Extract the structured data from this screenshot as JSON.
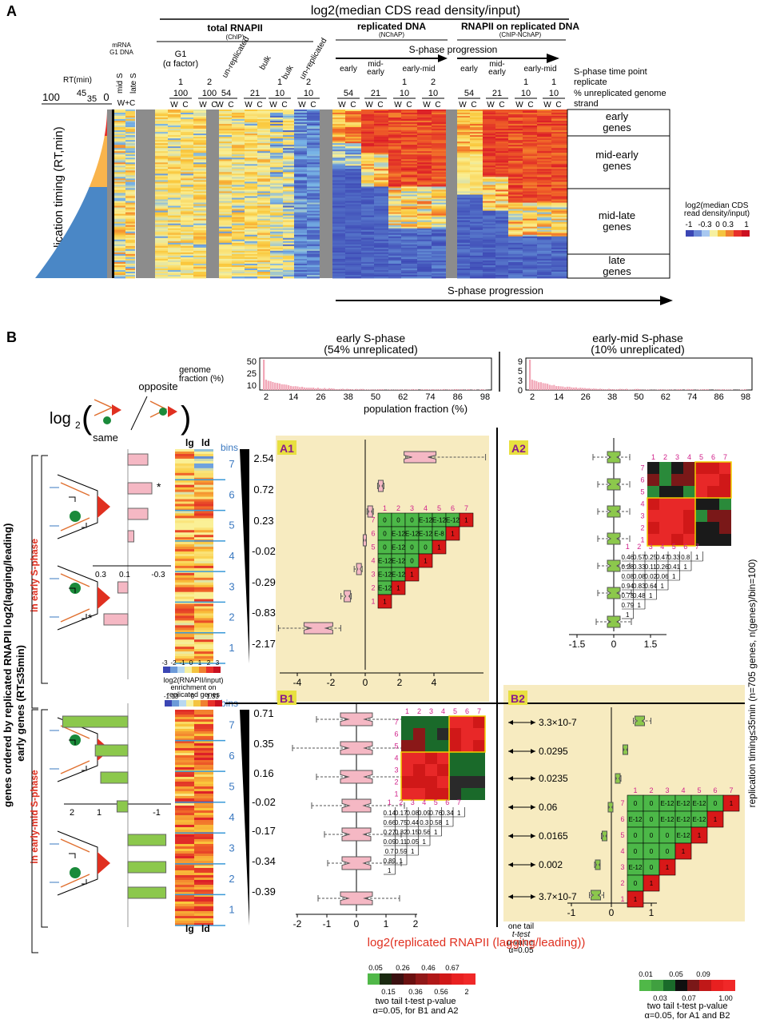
{
  "panel_a": {
    "letter": "A",
    "main_title": "log2(median CDS read density/input)",
    "group_total": "total RNAPII",
    "group_total_sub": "(ChIP)",
    "group_repl": "replicated DNA",
    "group_repl_sub": "(NChAP)",
    "group_rnapii_repl": "RNAPII on replicated DNA",
    "group_rnapii_repl_sub": "(ChIP-NChAP)",
    "s_phase_progression": "S-phase progression",
    "mrna_label": "mRNA",
    "g1dna_label": "G1 DNA",
    "mid_s": "mid S",
    "late_s": "late S",
    "wc_combined": "W+C",
    "rt_axis_label": "RT(min)",
    "rt_ticks": [
      "100",
      "45",
      "35",
      "0"
    ],
    "y_axis_label": "replication timing (RT,min)",
    "g1_label": "G1",
    "alpha_factor": "(α factor)",
    "unreplicated": "un-replicated",
    "bulk": "bulk",
    "tp_early": "early",
    "tp_mid": "mid-",
    "tp_mid2": "early",
    "tp_earlymid": "early-mid",
    "tp_earlymid_rnap": "early-mid",
    "row_tp_label": "S-phase time point",
    "row_rep_label": "replicate",
    "row_unrep_label": "% unreplicated genome",
    "row_strand_label": "strand",
    "total_replicates": [
      "1",
      "2",
      "",
      "",
      "1",
      "2"
    ],
    "total_pct": [
      "100",
      "100",
      "54",
      "21",
      "10",
      "10"
    ],
    "repl_replicates": [
      "",
      "",
      "1",
      "2"
    ],
    "repl_pct": [
      "54",
      "21",
      "10",
      "10"
    ],
    "rnap_replicates": [
      "",
      "",
      "1",
      "1"
    ],
    "rnap_pct": [
      "54",
      "21",
      "10",
      "10"
    ],
    "strand_w": "W",
    "strand_c": "C",
    "gene_classes": [
      "early genes",
      "mid-early genes",
      "mid-late genes",
      "late genes"
    ],
    "legend_title": "log2(median CDS read density/input)",
    "legend_ticks": [
      "-1",
      "-0.3",
      "0",
      "0.3",
      "1"
    ],
    "bottom_arrow_label": "S-phase progression"
  },
  "panel_b": {
    "letter": "B",
    "early_title": "early S-phase",
    "early_sub": "(54% unreplicated)",
    "earlymid_title": "early-mid S-phase",
    "earlymid_sub": "(10% unreplicated)",
    "genome_fraction_label": "genome fraction (%)",
    "hist_early_y_ticks": [
      "50",
      "25",
      "10"
    ],
    "hist_earlymid_y_ticks": [
      "9",
      "5",
      "3",
      "0"
    ],
    "hist_x_ticks": [
      "2",
      "14",
      "26",
      "38",
      "50",
      "62",
      "74",
      "86",
      "98"
    ],
    "population_fraction_label": "population fraction (%)",
    "log2_label": "log2",
    "opposite_label": "opposite",
    "same_label": "same",
    "y_axis_label_main": "genes ordered by replicated  RNAPII  log2(lagging/leading)",
    "y_axis_label_sub": "early genes (RT≤35min)",
    "in_early_s": "in early S-phase",
    "in_earlymid_s": "in early-mid S-phase",
    "right_label": "replication timing≤35min   (n=705 genes, n(genes)/bin=100)",
    "heat_col_lg": "lg",
    "heat_col_ld": "ld",
    "bins_label": "bins",
    "bins": [
      "7",
      "6",
      "5",
      "4",
      "3",
      "2",
      "1"
    ],
    "early_bar_axis_ticks": [
      "0.3",
      "0.1",
      "-0.3"
    ],
    "earlymid_bar_axis_ticks": [
      "2",
      "1",
      "-1"
    ],
    "star": "*",
    "heat_legend_ticks_top": [
      "-3",
      "-2",
      "-1",
      "0",
      "1",
      "2",
      "3"
    ],
    "heat_legend_title": "log2(RNAPII/input) enrichment on replicated genes",
    "heat_legend2_top": [
      "-1.33",
      "0",
      "1.33"
    ],
    "heat_legend2_bottom": [
      "-2",
      "-0.67",
      "0.67",
      "2"
    ],
    "early_medians": [
      "2.54",
      "0.72",
      "0.23",
      "-0.02",
      "-0.29",
      "-0.83",
      "-2.17"
    ],
    "earlymid_medians": [
      "0.71",
      "0.35",
      "0.16",
      "-0.02",
      "-0.17",
      "-0.34",
      "-0.39"
    ],
    "b2_pvalues": [
      "3.3×10-7",
      "0.0295",
      "0.0235",
      "0.06",
      "0.0165",
      "0.002",
      "3.7×10-7"
    ],
    "b2_note": "one tail t-test p-value, α=0.05",
    "x_axis_label": "log2(replicated RNAPII (lagging/leading))",
    "subpanels": [
      "A1",
      "A2",
      "B1",
      "B2"
    ],
    "a1_x_ticks": [
      "-4",
      "-2",
      "0",
      "2",
      "4"
    ],
    "a2_x_ticks": [
      "-1.5",
      "0",
      "1.5"
    ],
    "b1_x_ticks": [
      "-2",
      "-1",
      "0",
      "1",
      "2"
    ],
    "b2_x_ticks": [
      "-1",
      "0",
      "1"
    ],
    "matrix_col_headers": [
      "1",
      "2",
      "3",
      "4",
      "5",
      "6",
      "7"
    ],
    "a1_matrix": [
      [
        "0",
        "0",
        "0",
        "E-12",
        "E-12",
        "E-12",
        "1"
      ],
      [
        "0",
        "E-12",
        "E-12",
        "E-12",
        "E-8",
        "1",
        ""
      ],
      [
        "0",
        "E-12",
        "0",
        "0",
        "1",
        "",
        ""
      ],
      [
        "E-12",
        "E-12",
        "0",
        "1",
        "",
        "",
        ""
      ],
      [
        "E-12",
        "E-12",
        "1",
        "",
        "",
        "",
        ""
      ],
      [
        "E-12",
        "1",
        "",
        "",
        "",
        "",
        ""
      ],
      [
        "1",
        "",
        "",
        "",
        "",
        "",
        ""
      ]
    ],
    "b2_matrix": [
      [
        "0",
        "0",
        "E-12",
        "E-12",
        "E-12",
        "0",
        "1"
      ],
      [
        "E-12",
        "0",
        "E-12",
        "E-12",
        "E-12",
        "1",
        ""
      ],
      [
        "0",
        "0",
        "0",
        "E-12",
        "1",
        "",
        ""
      ],
      [
        "0",
        "0",
        "0",
        "1",
        "",
        "",
        ""
      ],
      [
        "E-12",
        "0",
        "1",
        "",
        "",
        "",
        ""
      ],
      [
        "0",
        "1",
        "",
        "",
        "",
        "",
        ""
      ],
      [
        "1",
        "",
        "",
        "",
        "",
        "",
        ""
      ]
    ],
    "a2_table": [
      [
        "0.46",
        "0.57",
        "0.25",
        "0.47",
        "0.33",
        "0.8",
        "1"
      ],
      [
        "0.28",
        "0.33",
        "0.11",
        "0.26",
        "0.41",
        "1",
        ""
      ],
      [
        "0.08",
        "0.08",
        "0.02",
        "0.06",
        "1",
        "",
        ""
      ],
      [
        "0.94",
        "0.83",
        "0.64",
        "1",
        "",
        "",
        ""
      ],
      [
        "0.73",
        "0.48",
        "1",
        "",
        "",
        "",
        ""
      ],
      [
        "0.79",
        "1",
        "",
        "",
        "",
        "",
        ""
      ],
      [
        "1",
        "",
        "",
        "",
        "",
        "",
        ""
      ]
    ],
    "b1_table": [
      [
        "0.14",
        "0.17",
        "0.08",
        "0.09",
        "0.76",
        "0.34",
        "1"
      ],
      [
        "0.66",
        "0.75",
        "0.44",
        "0.3",
        "0.58",
        "1",
        ""
      ],
      [
        "0.27",
        "0.32",
        "0.15",
        "0.56",
        "1",
        "",
        ""
      ],
      [
        "0.09",
        "0.11",
        "0.05",
        "1",
        "",
        "",
        ""
      ],
      [
        "0.7",
        "0.59",
        "1",
        "",
        "",
        "",
        ""
      ],
      [
        "0.89",
        "1",
        "",
        "",
        "",
        "",
        ""
      ],
      [
        "1",
        "",
        "",
        "",
        "",
        "",
        ""
      ]
    ],
    "pval_legend_left": {
      "top": [
        "0.05",
        "0.26",
        "0.46",
        "0.67"
      ],
      "bottom": [
        "0.15",
        "0.36",
        "0.56",
        "2"
      ],
      "caption1": "two tail t-test p-value",
      "caption2": "α=0.05, for B1 and A2"
    },
    "pval_legend_right": {
      "top": [
        "0.01",
        "0.05",
        "0.09"
      ],
      "bottom": [
        "0.03",
        "0.07",
        "1.00"
      ],
      "caption1": "two tail t-test p-value",
      "caption2": "α=0.05, for A1 and B2"
    }
  }
}
